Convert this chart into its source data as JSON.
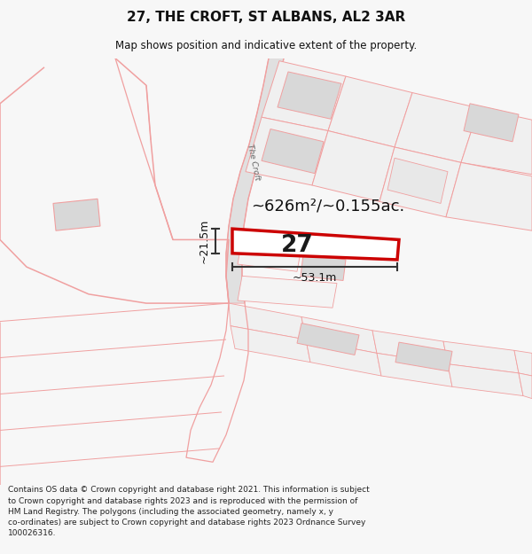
{
  "title": "27, THE CROFT, ST ALBANS, AL2 3AR",
  "subtitle": "Map shows position and indicative extent of the property.",
  "footer": "Contains OS data © Crown copyright and database right 2021. This information is subject to Crown copyright and database rights 2023 and is reproduced with the permission of HM Land Registry. The polygons (including the associated geometry, namely x, y co-ordinates) are subject to Crown copyright and database rights 2023 Ordnance Survey 100026316.",
  "bg_color": "#f7f7f7",
  "map_bg": "#ffffff",
  "area_label": "~626m²/~0.155ac.",
  "width_label": "~53.1m",
  "height_label": "~21.5m",
  "plot_number": "27",
  "road_label": "The Croft",
  "plot_color": "#cc0000",
  "plot_fill": "#ffffff",
  "light_red": "#f0a0a0",
  "gray_fill": "#d8d8d8",
  "gray_light": "#e8e8e8"
}
